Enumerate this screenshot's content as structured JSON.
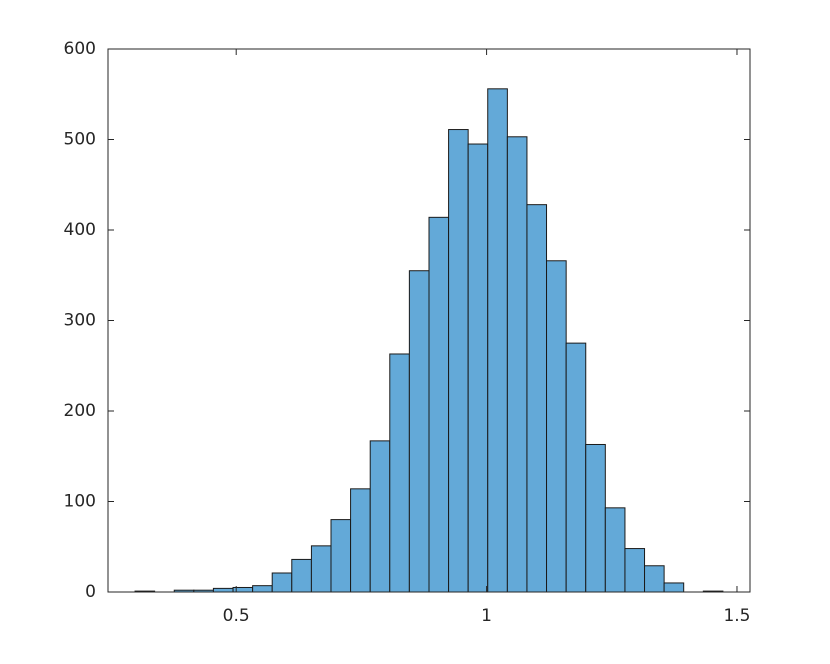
{
  "chart_data": {
    "type": "histogram",
    "bins": [
      0.298,
      0.3371,
      0.3763,
      0.4154,
      0.4545,
      0.4937,
      0.5328,
      0.5719,
      0.611,
      0.6502,
      0.6893,
      0.7284,
      0.7676,
      0.8067,
      0.8458,
      0.885,
      0.9241,
      0.9632,
      1.0023,
      1.0415,
      1.0806,
      1.1197,
      1.1589,
      1.198,
      1.2371,
      1.2763,
      1.3154,
      1.3545,
      1.3936,
      1.4328,
      1.4719
    ],
    "values": [
      1,
      0,
      2,
      2,
      4,
      5,
      7,
      21,
      36,
      51,
      80,
      114,
      167,
      263,
      355,
      414,
      511,
      495,
      556,
      503,
      428,
      366,
      275,
      163,
      93,
      48,
      29,
      10,
      0,
      1
    ],
    "color": "#63a9d8",
    "xlim": [
      0.244,
      1.526
    ],
    "xticks": [
      {
        "value": 0.5,
        "label": "0.5"
      },
      1,
      {
        "value": 1.5,
        "label": "1.5"
      }
    ],
    "ylim": [
      0,
      600
    ],
    "yticks": [
      0,
      100,
      200,
      300,
      400,
      500,
      600
    ]
  }
}
